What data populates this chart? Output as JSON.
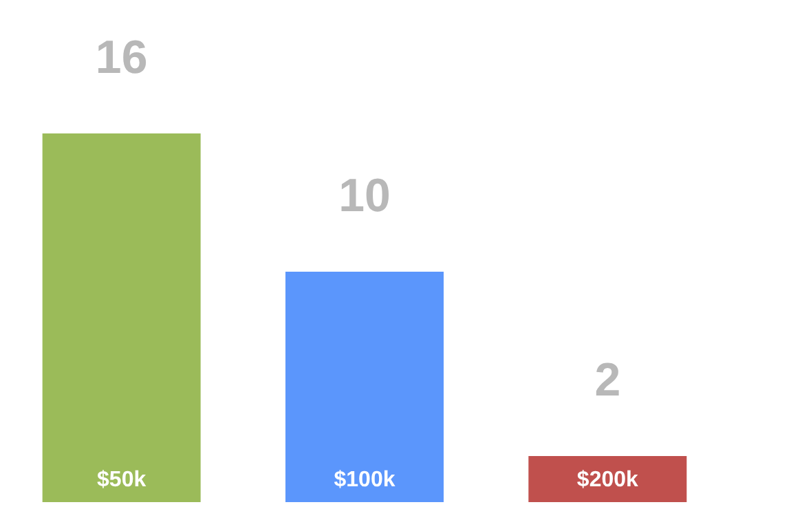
{
  "chart_data": {
    "type": "bar",
    "categories": [
      "$50k",
      "$100k",
      "$200k"
    ],
    "values": [
      16,
      10,
      2
    ],
    "colors": [
      "#9bbb59",
      "#5b96fc",
      "#c0504d"
    ],
    "data_labels": true,
    "grid": false
  }
}
